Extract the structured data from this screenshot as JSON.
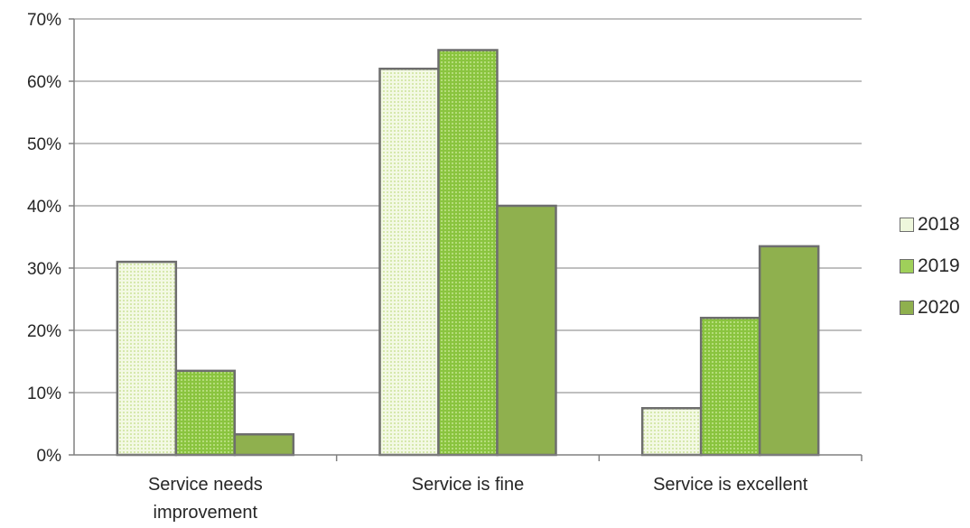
{
  "chart_data": {
    "type": "bar",
    "categories": [
      "Service needs improvement",
      "Service is fine",
      "Service is excellent"
    ],
    "category_lines": [
      [
        "Service needs",
        "improvement"
      ],
      [
        "Service is fine"
      ],
      [
        "Service is excellent"
      ]
    ],
    "series": [
      {
        "name": "2018",
        "values": [
          31,
          62,
          7.5
        ],
        "color": "#eaf5cf"
      },
      {
        "name": "2019",
        "values": [
          13.5,
          65,
          22
        ],
        "color": "#9ccc55"
      },
      {
        "name": "2020",
        "values": [
          3.3,
          40,
          33.5
        ],
        "color": "#8fb04e"
      }
    ],
    "ylim": [
      0,
      70
    ],
    "yticks": [
      "0%",
      "10%",
      "20%",
      "30%",
      "40%",
      "50%",
      "60%",
      "70%"
    ],
    "ytick_values": [
      0,
      10,
      20,
      30,
      40,
      50,
      60,
      70
    ],
    "grid": true,
    "legend_position": "right",
    "xlabel": "",
    "ylabel": ""
  }
}
